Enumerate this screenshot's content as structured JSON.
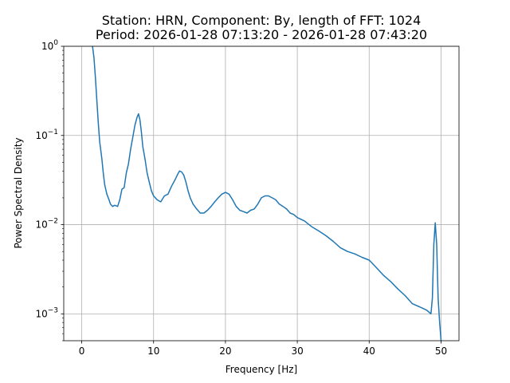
{
  "chart_data": {
    "type": "line",
    "title": "Station: HRN, Component: By, length of FFT: 1024",
    "subtitle": "Period: 2026-01-28 07:13:20 - 2026-01-28 07:43:20",
    "xlabel": "Frequency [Hz]",
    "ylabel": "Power Spectral Density",
    "xlim": [
      -2.5,
      52.5
    ],
    "ylim": [
      0.0005,
      1
    ],
    "yscale": "log",
    "grid": true,
    "line_color": "#1f77b4",
    "x_ticks": [
      {
        "value": 0,
        "label": "0"
      },
      {
        "value": 10,
        "label": "10"
      },
      {
        "value": 20,
        "label": "20"
      },
      {
        "value": 30,
        "label": "30"
      },
      {
        "value": 40,
        "label": "40"
      },
      {
        "value": 50,
        "label": "50"
      }
    ],
    "y_ticks": [
      {
        "value": 0.001,
        "base": "10",
        "exp": "−3"
      },
      {
        "value": 0.01,
        "base": "10",
        "exp": "−2"
      },
      {
        "value": 0.1,
        "base": "10",
        "exp": "−1"
      },
      {
        "value": 1,
        "base": "10",
        "exp": "0"
      }
    ],
    "series": [
      {
        "x": [
          1.5,
          1.7,
          1.9,
          2.1,
          2.3,
          2.5,
          2.8,
          3.0,
          3.2,
          3.5,
          3.8,
          4.0,
          4.3,
          4.6,
          5.0,
          5.3,
          5.6,
          5.9,
          6.2,
          6.5,
          6.8,
          7.1,
          7.4,
          7.7,
          7.9,
          8.1,
          8.3,
          8.5,
          8.8,
          9.1,
          9.4,
          9.7,
          10.0,
          10.5,
          11.0,
          11.5,
          12.0,
          12.5,
          13.0,
          13.3,
          13.6,
          13.9,
          14.2,
          14.5,
          14.8,
          15.1,
          15.5,
          16.0,
          16.5,
          17.0,
          17.5,
          18.0,
          18.5,
          19.0,
          19.5,
          20.0,
          20.5,
          21.0,
          21.5,
          22.0,
          22.5,
          23.0,
          23.5,
          24.0,
          24.5,
          25.0,
          25.5,
          26.0,
          26.5,
          27.0,
          27.5,
          28.0,
          28.5,
          29.0,
          29.5,
          30.0,
          31.0,
          32.0,
          33.0,
          34.0,
          35.0,
          36.0,
          37.0,
          38.0,
          39.0,
          40.0,
          41.0,
          42.0,
          43.0,
          44.0,
          45.0,
          46.0,
          47.0,
          47.5,
          48.0,
          48.3,
          48.6,
          48.8,
          49.0,
          49.2,
          49.4,
          49.6,
          49.8,
          50.0
        ],
        "y": [
          1.0,
          0.75,
          0.45,
          0.25,
          0.14,
          0.085,
          0.055,
          0.038,
          0.028,
          0.022,
          0.019,
          0.017,
          0.016,
          0.0165,
          0.016,
          0.019,
          0.025,
          0.026,
          0.038,
          0.048,
          0.07,
          0.095,
          0.13,
          0.16,
          0.175,
          0.15,
          0.11,
          0.075,
          0.055,
          0.038,
          0.03,
          0.024,
          0.021,
          0.019,
          0.018,
          0.021,
          0.022,
          0.027,
          0.032,
          0.036,
          0.04,
          0.039,
          0.036,
          0.03,
          0.024,
          0.02,
          0.017,
          0.015,
          0.0135,
          0.0135,
          0.0145,
          0.016,
          0.018,
          0.02,
          0.022,
          0.023,
          0.022,
          0.019,
          0.016,
          0.0145,
          0.014,
          0.0135,
          0.0145,
          0.015,
          0.017,
          0.02,
          0.021,
          0.021,
          0.02,
          0.019,
          0.017,
          0.016,
          0.015,
          0.0135,
          0.013,
          0.012,
          0.011,
          0.0095,
          0.0085,
          0.0075,
          0.0065,
          0.0055,
          0.005,
          0.0047,
          0.0043,
          0.004,
          0.0033,
          0.0027,
          0.0023,
          0.0019,
          0.0016,
          0.0013,
          0.0012,
          0.00115,
          0.0011,
          0.00105,
          0.001,
          0.0015,
          0.006,
          0.0105,
          0.006,
          0.0015,
          0.0008,
          0.0005
        ]
      }
    ]
  }
}
